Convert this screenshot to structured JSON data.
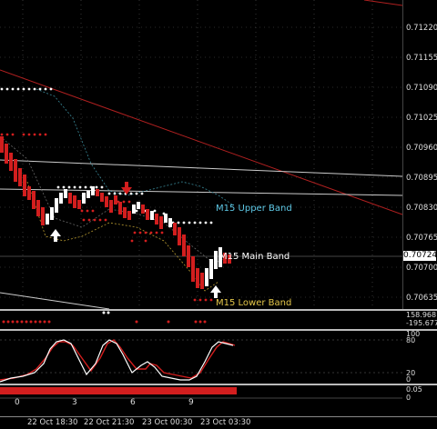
{
  "price_axis": {
    "ticks": [
      "0.71220",
      "0.71155",
      "0.71090",
      "0.71025",
      "0.70960",
      "0.70895",
      "0.70830",
      "0.70765",
      "0.70700",
      "0.70635"
    ],
    "current_price": "0.70724"
  },
  "bands": {
    "upper": {
      "label": "M15 Upper Band",
      "color": "#5ec8e6"
    },
    "main": {
      "label": "M15 Main Band",
      "color": "#ffffff"
    },
    "lower": {
      "label": "M15 Lower Band",
      "color": "#e6c84a"
    }
  },
  "indicator1": {
    "values": [
      "158.9681",
      "-195.6774"
    ]
  },
  "stochastic": {
    "levels": [
      "100",
      "80",
      "20",
      "0"
    ]
  },
  "histogram": {
    "labels": [
      "0",
      "3",
      "6",
      "9"
    ],
    "levels": [
      "0.05",
      "0"
    ]
  },
  "time_axis": {
    "labels": [
      "22 Oct 18:30",
      "22 Oct 21:30",
      "23 Oct 00:30",
      "23 Oct 03:30"
    ]
  },
  "colors": {
    "background": "#000000",
    "bear_candle": "#d21e1e",
    "bull_candle": "#ffffff",
    "stoch_main": "#ffffff",
    "stoch_signal": "#d21e1e"
  }
}
